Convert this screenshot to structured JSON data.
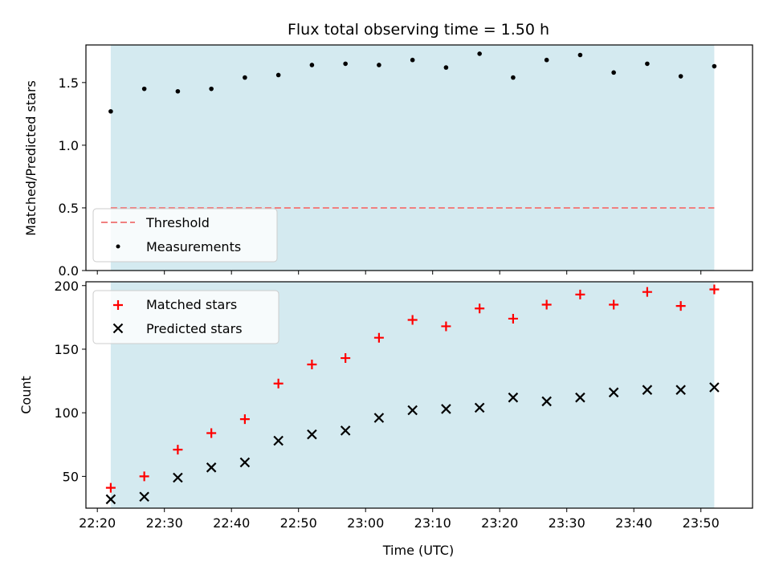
{
  "title": "Flux total observing time = 1.50 h",
  "xlabel": "Time (UTC)",
  "x_ticks": [
    "22:20",
    "22:30",
    "22:40",
    "22:50",
    "23:00",
    "23:10",
    "23:20",
    "23:30",
    "23:40",
    "23:50"
  ],
  "colors": {
    "shade": "#d4eaf0",
    "threshold": "#f08080",
    "measurement": "#000000",
    "matched": "#ff0000",
    "predicted": "#000000"
  },
  "chart_data": [
    {
      "type": "scatter",
      "ylabel": "Matched/Predicted stars",
      "ylim": [
        0,
        1.8
      ],
      "y_ticks": [
        "0.0",
        "0.5",
        "1.0",
        "1.5"
      ],
      "threshold": 0.5,
      "shaded_span": [
        "22:22",
        "23:52"
      ],
      "legend": {
        "placement": "lower-left",
        "entries": [
          "Threshold",
          "Measurements"
        ]
      },
      "series": [
        {
          "name": "Measurements",
          "x": [
            "22:22",
            "22:27",
            "22:32",
            "22:37",
            "22:42",
            "22:47",
            "22:52",
            "22:57",
            "23:02",
            "23:07",
            "23:12",
            "23:17",
            "23:22",
            "23:27",
            "23:32",
            "23:37",
            "23:42",
            "23:47",
            "23:52"
          ],
          "values": [
            1.27,
            1.45,
            1.43,
            1.45,
            1.54,
            1.56,
            1.64,
            1.65,
            1.64,
            1.68,
            1.62,
            1.73,
            1.54,
            1.68,
            1.72,
            1.58,
            1.65,
            1.55,
            1.63
          ]
        }
      ]
    },
    {
      "type": "scatter",
      "ylabel": "Count",
      "ylim": [
        25,
        203
      ],
      "y_ticks": [
        "50",
        "100",
        "150",
        "200"
      ],
      "shaded_span": [
        "22:22",
        "23:52"
      ],
      "legend": {
        "placement": "upper-left",
        "entries": [
          "Matched stars",
          "Predicted stars"
        ]
      },
      "series": [
        {
          "name": "Matched stars",
          "x": [
            "22:22",
            "22:27",
            "22:32",
            "22:37",
            "22:42",
            "22:47",
            "22:52",
            "22:57",
            "23:02",
            "23:07",
            "23:12",
            "23:17",
            "23:22",
            "23:27",
            "23:32",
            "23:37",
            "23:42",
            "23:47",
            "23:52"
          ],
          "values": [
            41,
            50,
            71,
            84,
            95,
            123,
            138,
            143,
            159,
            173,
            168,
            182,
            174,
            185,
            193,
            185,
            195,
            184,
            197
          ]
        },
        {
          "name": "Predicted stars",
          "x": [
            "22:22",
            "22:27",
            "22:32",
            "22:37",
            "22:42",
            "22:47",
            "22:52",
            "22:57",
            "23:02",
            "23:07",
            "23:12",
            "23:17",
            "23:22",
            "23:27",
            "23:32",
            "23:37",
            "23:42",
            "23:47",
            "23:52"
          ],
          "values": [
            32,
            34,
            49,
            57,
            61,
            78,
            83,
            86,
            96,
            102,
            103,
            104,
            112,
            109,
            112,
            116,
            118,
            118,
            120
          ]
        }
      ]
    }
  ]
}
